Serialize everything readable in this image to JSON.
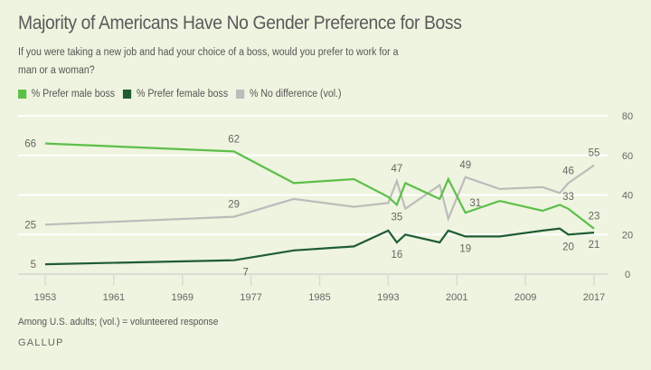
{
  "header": {
    "title": "Majority of Americans Have No Gender Preference for Boss",
    "subtitle": "If you were taking a new job and had your choice of a boss, would you prefer to work for a man or a woman?"
  },
  "legend": [
    {
      "label": "% Prefer male boss",
      "color": "#5cbf4a"
    },
    {
      "label": "% Prefer female boss",
      "color": "#1f5c33"
    },
    {
      "label": "% No difference (vol.)",
      "color": "#bcbcbc"
    }
  ],
  "footer": {
    "note": "Among U.S. adults; (vol.) = volunteered response",
    "source": "GALLUP"
  },
  "chart_data": {
    "type": "line",
    "title": "Majority of Americans Have No Gender Preference for Boss",
    "xlabel": "",
    "ylabel": "",
    "xlim": [
      1953,
      2017
    ],
    "ylim": [
      0,
      80
    ],
    "grid": true,
    "legend_position": "top-left",
    "y_axis_side": "right",
    "x_ticks": [
      1953,
      1961,
      1969,
      1977,
      1985,
      1993,
      2001,
      2009,
      2017
    ],
    "y_ticks": [
      0,
      20,
      40,
      60,
      80
    ],
    "x": [
      1953,
      1975,
      1982,
      1989,
      1993,
      1994,
      1995,
      1999,
      2000,
      2002,
      2006,
      2011,
      2013,
      2014,
      2017
    ],
    "series": [
      {
        "name": "% Prefer male boss",
        "color": "#5cbf4a",
        "values": [
          66,
          62,
          46,
          48,
          39,
          35,
          46,
          38,
          48,
          31,
          37,
          32,
          35,
          33,
          23
        ],
        "labels": [
          {
            "year": 1953,
            "value": 66,
            "text": "66",
            "pos": "left"
          },
          {
            "year": 1975,
            "value": 62,
            "text": "62",
            "pos": "above"
          },
          {
            "year": 1994,
            "value": 35,
            "text": "35",
            "pos": "below"
          },
          {
            "year": 2002,
            "value": 31,
            "text": "31",
            "pos": "above-right"
          },
          {
            "year": 2014,
            "value": 33,
            "text": "33",
            "pos": "above"
          },
          {
            "year": 2017,
            "value": 23,
            "text": "23",
            "pos": "above"
          }
        ]
      },
      {
        "name": "% Prefer female boss",
        "color": "#1f5c33",
        "values": [
          5,
          7,
          12,
          14,
          22,
          16,
          20,
          16,
          22,
          19,
          19,
          22,
          23,
          20,
          21
        ],
        "labels": [
          {
            "year": 1953,
            "value": 5,
            "text": "5",
            "pos": "left"
          },
          {
            "year": 1975,
            "value": 7,
            "text": "7",
            "pos": "below"
          },
          {
            "year": 1994,
            "value": 16,
            "text": "16",
            "pos": "below"
          },
          {
            "year": 2002,
            "value": 19,
            "text": "19",
            "pos": "below"
          },
          {
            "year": 2014,
            "value": 20,
            "text": "20",
            "pos": "below"
          },
          {
            "year": 2017,
            "value": 21,
            "text": "21",
            "pos": "below"
          }
        ]
      },
      {
        "name": "% No difference (vol.)",
        "color": "#bcbcbc",
        "values": [
          25,
          29,
          38,
          34,
          36,
          47,
          33,
          45,
          28,
          49,
          43,
          44,
          41,
          46,
          55
        ],
        "labels": [
          {
            "year": 1953,
            "value": 25,
            "text": "25",
            "pos": "left"
          },
          {
            "year": 1975,
            "value": 29,
            "text": "29",
            "pos": "above"
          },
          {
            "year": 1994,
            "value": 47,
            "text": "47",
            "pos": "above"
          },
          {
            "year": 2002,
            "value": 49,
            "text": "49",
            "pos": "above"
          },
          {
            "year": 2014,
            "value": 46,
            "text": "46",
            "pos": "above"
          },
          {
            "year": 2017,
            "value": 55,
            "text": "55",
            "pos": "above"
          }
        ]
      }
    ]
  }
}
